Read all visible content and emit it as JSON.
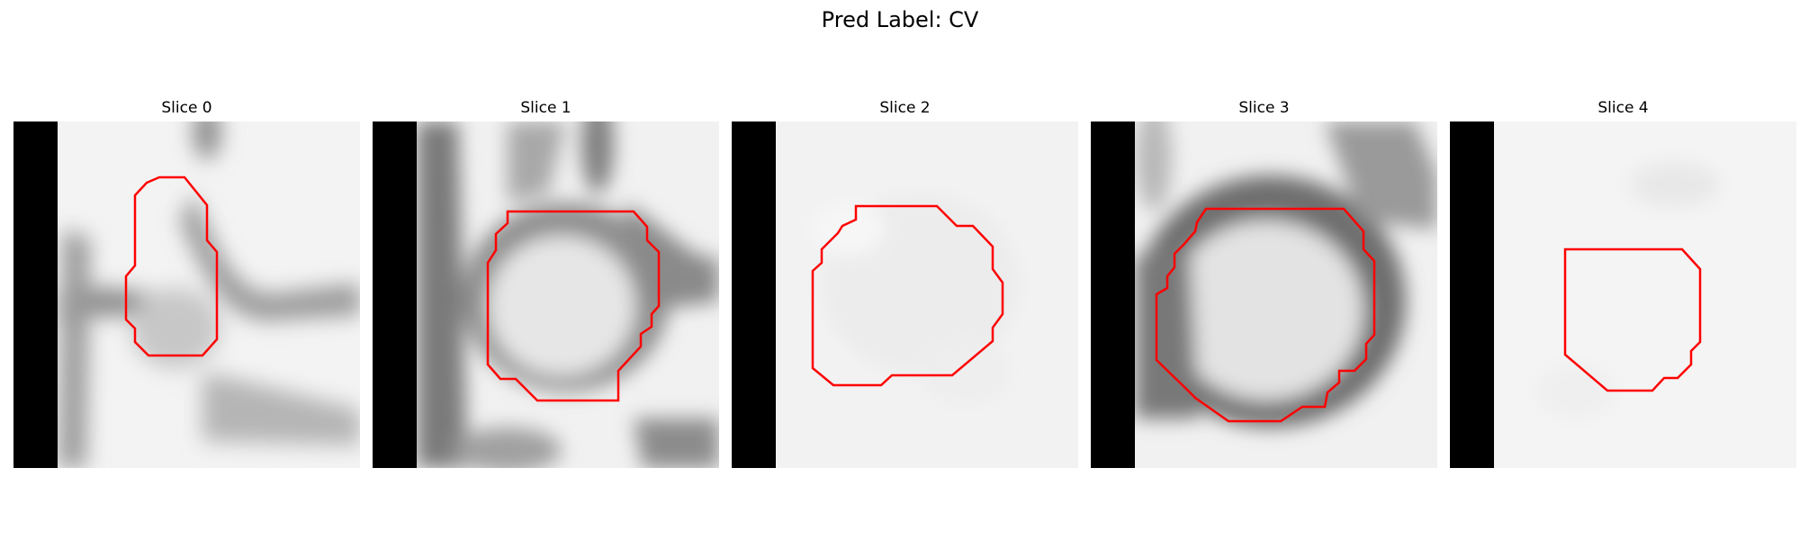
{
  "figure": {
    "title": "Pred Label: CV",
    "contour_color": "#ff0000",
    "panels": [
      {
        "title": "Slice 0",
        "pattern": "slice0"
      },
      {
        "title": "Slice 1",
        "pattern": "slice1"
      },
      {
        "title": "Slice 2",
        "pattern": "slice2"
      },
      {
        "title": "Slice 3",
        "pattern": "slice3"
      },
      {
        "title": "Slice 4",
        "pattern": "slice4"
      }
    ]
  }
}
